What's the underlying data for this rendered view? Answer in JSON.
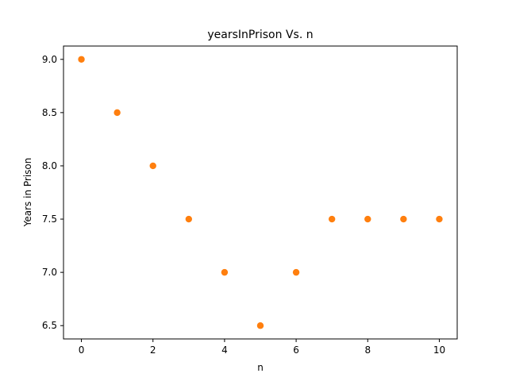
{
  "chart_data": {
    "type": "scatter",
    "title": "yearsInPrison Vs. n",
    "xlabel": "n",
    "ylabel": "Years in Prison",
    "xlim": [
      -0.5,
      10.5
    ],
    "ylim": [
      6.375,
      9.125
    ],
    "xticks": [
      0,
      2,
      4,
      6,
      8,
      10
    ],
    "xtick_labels": [
      "0",
      "2",
      "4",
      "6",
      "8",
      "10"
    ],
    "yticks": [
      6.5,
      7.0,
      7.5,
      8.0,
      8.5,
      9.0
    ],
    "ytick_labels": [
      "6.5",
      "7.0",
      "7.5",
      "8.0",
      "8.5",
      "9.0"
    ],
    "grid": false,
    "series": [
      {
        "color": "#ff7f0e",
        "x": [
          0,
          1,
          2,
          3,
          4,
          5,
          6,
          7,
          8,
          9,
          10
        ],
        "y": [
          9.0,
          8.5,
          8.0,
          7.5,
          7.0,
          6.5,
          7.0,
          7.5,
          7.5,
          7.5,
          7.5
        ]
      }
    ]
  }
}
